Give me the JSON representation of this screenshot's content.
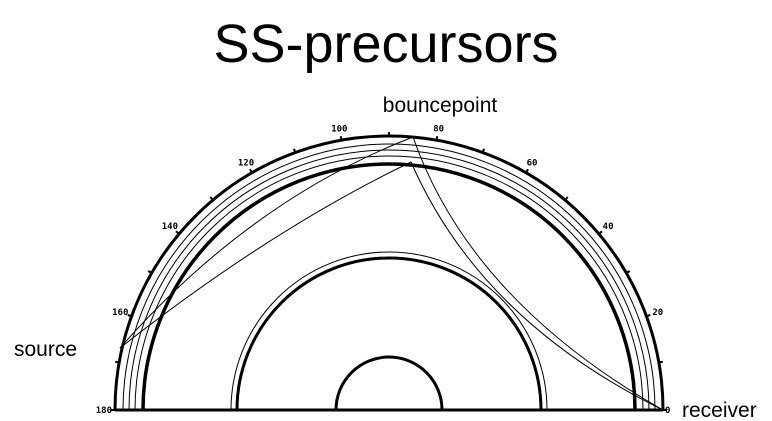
{
  "title": "SS-precursors",
  "labels": {
    "bouncepoint": "bouncepoint",
    "source": "source",
    "receiver": "receiver"
  },
  "angle_ticks": [
    0,
    20,
    40,
    60,
    80,
    100,
    120,
    140,
    160,
    180
  ]
}
